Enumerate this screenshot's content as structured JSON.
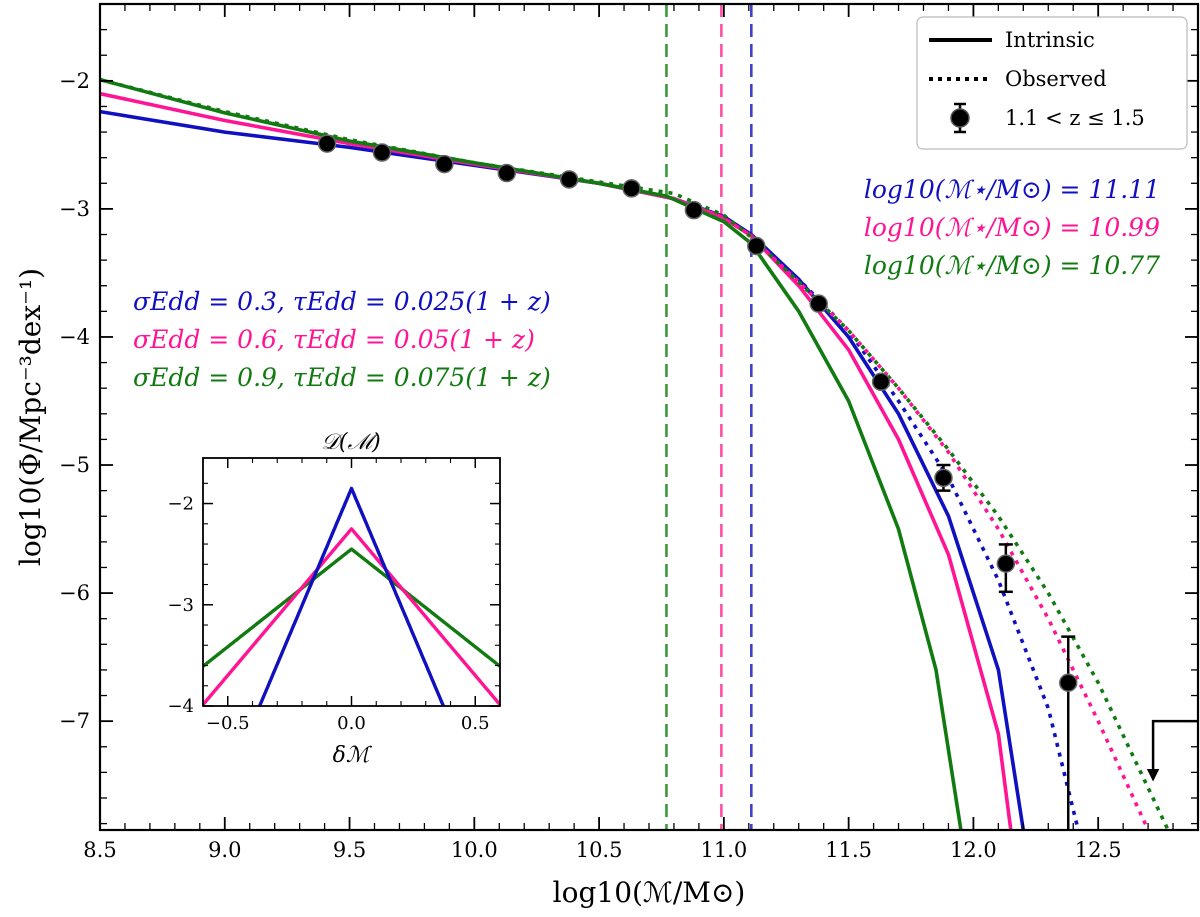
{
  "chart_data": [
    {
      "type": "line",
      "xlabel": "log10(ℳ/M⊙)",
      "ylabel": "log10(Φ/Mpc⁻³dex⁻¹)",
      "xlim": [
        8.5,
        12.9
      ],
      "ylim": [
        -7.85,
        -1.4
      ],
      "x_ticks": [
        8.5,
        9.0,
        9.5,
        10.0,
        10.5,
        11.0,
        11.5,
        12.0,
        12.5
      ],
      "x_tick_labels": [
        "8.5",
        "9.0",
        "9.5",
        "10.0",
        "10.5",
        "11.0",
        "11.5",
        "12.0",
        "12.5"
      ],
      "y_ticks": [
        -2,
        -3,
        -4,
        -5,
        -6,
        -7
      ],
      "y_tick_labels": [
        "−2",
        "−3",
        "−4",
        "−5",
        "−6",
        "−7"
      ],
      "legend": {
        "position": "top-right",
        "entries": [
          "Intrinsic",
          "Observed",
          "1.1 < z ≤ 1.5"
        ]
      },
      "series": [
        {
          "name": "Intrinsic σ=0.3",
          "style": "solid",
          "color": "#1010c0",
          "x": [
            8.5,
            9.0,
            9.5,
            10.0,
            10.5,
            10.8,
            11.0,
            11.11,
            11.3,
            11.5,
            11.7,
            11.9,
            12.1,
            12.2
          ],
          "y": [
            -2.24,
            -2.4,
            -2.52,
            -2.66,
            -2.8,
            -2.92,
            -3.06,
            -3.2,
            -3.55,
            -4.0,
            -4.6,
            -5.4,
            -6.6,
            -7.85
          ]
        },
        {
          "name": "Intrinsic σ=0.6",
          "style": "solid",
          "color": "#ff1493",
          "x": [
            8.5,
            9.0,
            9.5,
            10.0,
            10.5,
            10.8,
            10.99,
            11.11,
            11.3,
            11.5,
            11.7,
            11.9,
            12.1,
            12.15
          ],
          "y": [
            -2.1,
            -2.31,
            -2.49,
            -2.65,
            -2.8,
            -2.92,
            -3.06,
            -3.21,
            -3.6,
            -4.1,
            -4.8,
            -5.7,
            -7.1,
            -7.85
          ]
        },
        {
          "name": "Intrinsic σ=0.9",
          "style": "solid",
          "color": "#117a11",
          "x": [
            8.5,
            9.0,
            9.5,
            10.0,
            10.5,
            10.77,
            11.0,
            11.11,
            11.3,
            11.5,
            11.7,
            11.85,
            11.95
          ],
          "y": [
            -1.99,
            -2.25,
            -2.47,
            -2.64,
            -2.8,
            -2.9,
            -3.1,
            -3.27,
            -3.8,
            -4.5,
            -5.5,
            -6.6,
            -7.85
          ]
        },
        {
          "name": "Observed σ=0.3",
          "style": "dotted",
          "color": "#1010c0",
          "x": [
            11.11,
            11.3,
            11.5,
            11.7,
            11.9,
            12.1,
            12.3,
            12.42
          ],
          "y": [
            -3.22,
            -3.55,
            -3.95,
            -4.5,
            -5.1,
            -5.9,
            -6.9,
            -7.85
          ]
        },
        {
          "name": "Observed σ=0.6",
          "style": "dotted",
          "color": "#ff1493",
          "x": [
            11.11,
            11.3,
            11.5,
            11.7,
            11.9,
            12.1,
            12.3,
            12.5,
            12.7
          ],
          "y": [
            -3.22,
            -3.57,
            -3.95,
            -4.4,
            -4.9,
            -5.5,
            -6.2,
            -7.0,
            -7.85
          ]
        },
        {
          "name": "Observed σ=0.9",
          "style": "dotted",
          "color": "#117a11",
          "x": [
            8.5,
            9.0,
            9.5,
            10.0,
            10.5,
            10.8,
            11.0,
            11.11,
            11.3,
            11.5,
            11.7,
            11.9,
            12.1,
            12.3,
            12.5,
            12.78
          ],
          "y": [
            -1.99,
            -2.24,
            -2.46,
            -2.64,
            -2.79,
            -2.88,
            -3.05,
            -3.22,
            -3.57,
            -3.95,
            -4.4,
            -4.88,
            -5.4,
            -6.0,
            -6.7,
            -7.85
          ]
        }
      ],
      "points": {
        "name": "1.1 < z ≤ 1.5",
        "x": [
          9.41,
          9.63,
          9.88,
          10.13,
          10.38,
          10.63,
          10.88,
          11.13,
          11.38,
          11.63,
          11.88,
          12.13,
          12.38
        ],
        "y": [
          -2.49,
          -2.56,
          -2.65,
          -2.72,
          -2.77,
          -2.84,
          -3.01,
          -3.29,
          -3.74,
          -4.35,
          -5.1,
          -5.77,
          -6.7
        ],
        "err_low": [
          0.0,
          0.0,
          0.0,
          0.0,
          0.0,
          0.0,
          0.0,
          0.0,
          0.0,
          0.0,
          0.1,
          0.22,
          2.5
        ],
        "err_high": [
          0.0,
          0.0,
          0.0,
          0.0,
          0.0,
          0.0,
          0.0,
          0.0,
          0.0,
          0.0,
          0.1,
          0.15,
          0.36
        ]
      },
      "upper_limit": {
        "x": 12.72,
        "y": -7.0,
        "y_arrow_end": -7.45
      },
      "vlines": [
        {
          "x": 10.77,
          "color": "#3a9a3a"
        },
        {
          "x": 10.99,
          "color": "#ff4fa8"
        },
        {
          "x": 11.11,
          "color": "#4040c8"
        }
      ]
    },
    {
      "type": "line",
      "title": "𝒟(ℳ)",
      "xlabel": "δℳ",
      "xlim": [
        -0.6,
        0.6
      ],
      "ylim": [
        -4.0,
        -1.55
      ],
      "x_ticks": [
        -0.5,
        0.0,
        0.5
      ],
      "x_tick_labels": [
        "−0.5",
        "0.0",
        "0.5"
      ],
      "y_ticks": [
        -2,
        -3,
        -4
      ],
      "y_tick_labels": [
        "−2",
        "−3",
        "−4"
      ],
      "series": [
        {
          "name": "σ=0.3",
          "color": "#1010c0",
          "peak": -1.85,
          "scale": 0.075
        },
        {
          "name": "σ=0.6",
          "color": "#ff1493",
          "peak": -2.25,
          "scale": 0.15
        },
        {
          "name": "σ=0.9",
          "color": "#117a11",
          "peak": -2.45,
          "scale": 0.225
        }
      ]
    }
  ],
  "annotations": {
    "sigma_lines": [
      {
        "text": "σEdd = 0.3, τEdd = 0.025(1 + z)",
        "color": "#1010c0"
      },
      {
        "text": "σEdd = 0.6, τEdd = 0.05(1 + z)",
        "color": "#ff1493"
      },
      {
        "text": "σEdd = 0.9, τEdd = 0.075(1 + z)",
        "color": "#117a11"
      }
    ],
    "mstar_lines": [
      {
        "text": "log10(ℳ⋆/M⊙) = 11.11",
        "color": "#1010c0"
      },
      {
        "text": "log10(ℳ⋆/M⊙) = 10.99",
        "color": "#ff1493"
      },
      {
        "text": "log10(ℳ⋆/M⊙) = 10.77",
        "color": "#117a11"
      }
    ]
  }
}
